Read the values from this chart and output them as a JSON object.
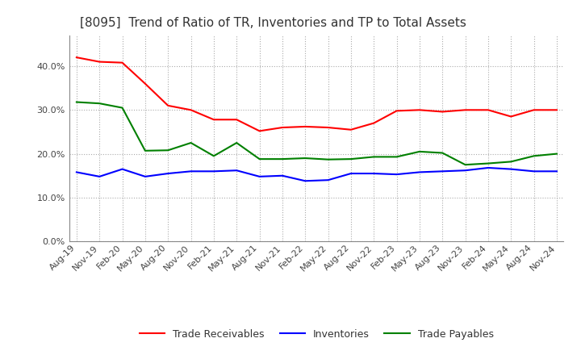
{
  "title": "[8095]  Trend of Ratio of TR, Inventories and TP to Total Assets",
  "x_labels": [
    "Aug-19",
    "Nov-19",
    "Feb-20",
    "May-20",
    "Aug-20",
    "Nov-20",
    "Feb-21",
    "May-21",
    "Aug-21",
    "Nov-21",
    "Feb-22",
    "May-22",
    "Aug-22",
    "Nov-22",
    "Feb-23",
    "May-23",
    "Aug-23",
    "Nov-23",
    "Feb-24",
    "May-24",
    "Aug-24",
    "Nov-24"
  ],
  "trade_receivables": [
    0.42,
    0.41,
    0.408,
    0.36,
    0.31,
    0.3,
    0.278,
    0.278,
    0.252,
    0.26,
    0.262,
    0.26,
    0.255,
    0.27,
    0.298,
    0.3,
    0.296,
    0.3,
    0.3,
    0.285,
    0.3,
    0.3
  ],
  "inventories": [
    0.158,
    0.148,
    0.165,
    0.148,
    0.155,
    0.16,
    0.16,
    0.162,
    0.148,
    0.15,
    0.138,
    0.14,
    0.155,
    0.155,
    0.153,
    0.158,
    0.16,
    0.162,
    0.168,
    0.165,
    0.16,
    0.16
  ],
  "trade_payables": [
    0.318,
    0.315,
    0.305,
    0.207,
    0.208,
    0.225,
    0.195,
    0.225,
    0.188,
    0.188,
    0.19,
    0.187,
    0.188,
    0.193,
    0.193,
    0.205,
    0.202,
    0.175,
    0.178,
    0.182,
    0.195,
    0.2
  ],
  "tr_color": "#ff0000",
  "inv_color": "#0000ff",
  "tp_color": "#008000",
  "ylim": [
    0.0,
    0.47
  ],
  "yticks": [
    0.0,
    0.1,
    0.2,
    0.3,
    0.4
  ],
  "background_color": "#ffffff",
  "grid_color": "#aaaaaa"
}
